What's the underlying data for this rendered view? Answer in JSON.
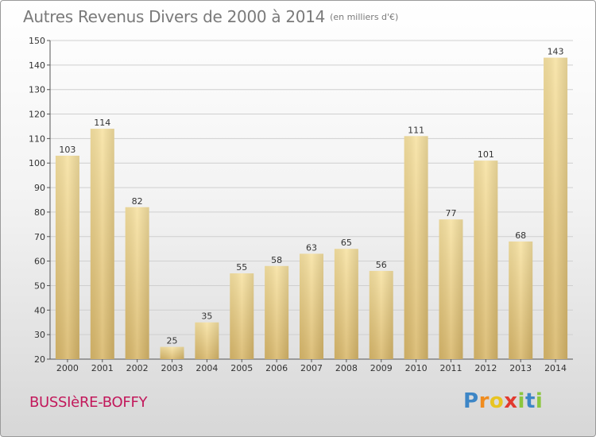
{
  "header": {
    "title": "Autres Revenus Divers de 2000 à 2014",
    "subtitle": "(en milliers d'€)"
  },
  "footer": {
    "place": "BUSSIèRE-BOFFY",
    "logo_letters": [
      "P",
      "r",
      "o",
      "x",
      "i",
      "t",
      "i"
    ],
    "logo_colors": [
      "#3d86c6",
      "#f08c1e",
      "#e8c421",
      "#e23a2f",
      "#8cc63e",
      "#3d86c6",
      "#8cc63e"
    ]
  },
  "colors": {
    "bar_light": "#f7e2a2",
    "bar_dark": "#d8b76a",
    "grid": "#cfcfcf",
    "title": "#7a7a7a",
    "place": "#c2185b"
  },
  "chart_data": {
    "type": "bar",
    "title": "Autres Revenus Divers de 2000 à 2014",
    "subtitle": "(en milliers d'€)",
    "categories": [
      "2000",
      "2001",
      "2002",
      "2003",
      "2004",
      "2005",
      "2006",
      "2007",
      "2008",
      "2009",
      "2010",
      "2011",
      "2012",
      "2013",
      "2014"
    ],
    "values": [
      103,
      114,
      82,
      25,
      35,
      55,
      58,
      63,
      65,
      56,
      111,
      77,
      101,
      68,
      143
    ],
    "ylim": [
      20,
      150
    ],
    "yticks": [
      20,
      30,
      40,
      50,
      60,
      70,
      80,
      90,
      100,
      110,
      120,
      130,
      140,
      150
    ],
    "grid": true,
    "xlabel": "",
    "ylabel": ""
  }
}
